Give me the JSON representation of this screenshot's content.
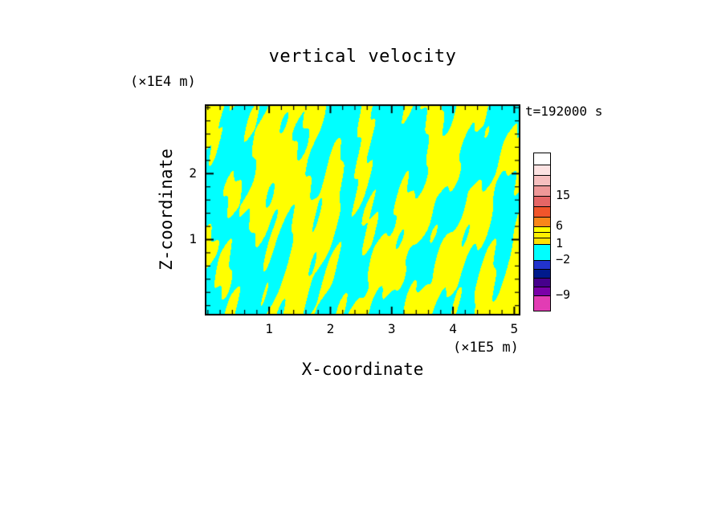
{
  "figure": {
    "background": "#ffffff",
    "frame_color": "#000000"
  },
  "chart_data": {
    "type": "heatmap",
    "title": "vertical velocity",
    "time_label": "t=192000 s",
    "xlabel": "X-coordinate",
    "x_unit_label": "(×1E5 m)",
    "ylabel": "Z-coordinate",
    "y_unit_label": "(×1E4 m)",
    "x_range": [
      -0.05,
      5.1
    ],
    "y_range": [
      -0.15,
      3.05
    ],
    "x_ticks": [
      1,
      2,
      3,
      4,
      5
    ],
    "y_ticks": [
      1,
      2
    ],
    "x_minor_step": 0.2,
    "y_minor_step": 0.2,
    "field": {
      "description": "Chaotic wave-filament field of vertical velocity at t=192000 s: values alternate between the positive band 1..6 (yellow) and the band -2..1 (cyan).",
      "positive_color": "#ffff00",
      "negative_color": "#00ffff",
      "threshold": 0,
      "waves": [
        [
          1.0,
          21,
          4.5,
          2.8,
          5.2,
          3.6
        ],
        [
          0.9,
          44,
          -7,
          2.2,
          9.5,
          4.8
        ],
        [
          0.75,
          8,
          7.5,
          2.6,
          15.5,
          2.2
        ],
        [
          0.6,
          86,
          14,
          1.8,
          3.3,
          6.1
        ],
        [
          0.5,
          150,
          40,
          1.2,
          6.8,
          2.4
        ]
      ]
    },
    "colorbar": {
      "segments": [
        {
          "color": "#ffffff",
          "h": 14
        },
        {
          "color": "#fce2e2",
          "h": 13
        },
        {
          "color": "#f6bfbf",
          "h": 13
        },
        {
          "color": "#ee9898",
          "h": 13
        },
        {
          "color": "#e56666",
          "h": 13
        },
        {
          "color": "#f1552b",
          "h": 13
        },
        {
          "color": "#f8861a",
          "h": 12
        },
        {
          "color": "#ffff00",
          "h": 7
        },
        {
          "color": "#fff000",
          "h": 7
        },
        {
          "color": "#ffe200",
          "h": 8
        },
        {
          "color": "#00ffff",
          "h": 20
        },
        {
          "color": "#2233cc",
          "h": 11
        },
        {
          "color": "#001a8c",
          "h": 11
        },
        {
          "color": "#46008c",
          "h": 11
        },
        {
          "color": "#7a00a8",
          "h": 11
        },
        {
          "color": "#e23cb4",
          "h": 19
        }
      ],
      "labels": [
        {
          "text": "15",
          "boundary_index": 4
        },
        {
          "text": "6",
          "boundary_index": 7
        },
        {
          "text": "1",
          "boundary_index": 10
        },
        {
          "text": "−2",
          "boundary_index": 11
        },
        {
          "text": "−9",
          "boundary_index": 15
        }
      ]
    }
  }
}
